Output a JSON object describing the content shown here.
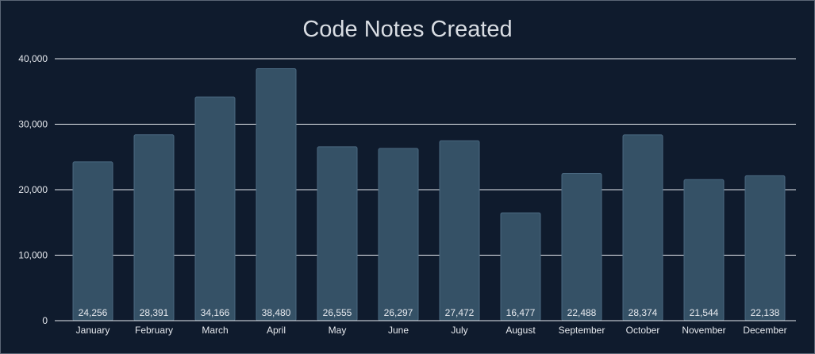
{
  "chart_data": {
    "type": "bar",
    "title": "Code Notes Created",
    "categories": [
      "January",
      "February",
      "March",
      "April",
      "May",
      "June",
      "July",
      "August",
      "September",
      "October",
      "November",
      "December"
    ],
    "values": [
      24256,
      28391,
      34166,
      38480,
      26555,
      26297,
      27472,
      16477,
      22488,
      28374,
      21544,
      22138
    ],
    "value_labels": [
      "24,256",
      "28,391",
      "34,166",
      "38,480",
      "26,555",
      "26,297",
      "27,472",
      "16,477",
      "22,488",
      "28,374",
      "21,544",
      "22,138"
    ],
    "y_ticks": [
      0,
      10000,
      20000,
      30000,
      40000
    ],
    "y_tick_labels": [
      "0",
      "10,000",
      "20,000",
      "30,000",
      "40,000"
    ],
    "ylim": [
      0,
      40000
    ],
    "xlabel": "",
    "ylabel": "",
    "grid": true,
    "legend": "none",
    "colors": {
      "background": "#0f1b2d",
      "bar": "#355166",
      "bar_stroke": "#4a6880",
      "gridline": "#e6e9ee",
      "text": "#e6e9ee",
      "title": "#d9dde3"
    }
  }
}
